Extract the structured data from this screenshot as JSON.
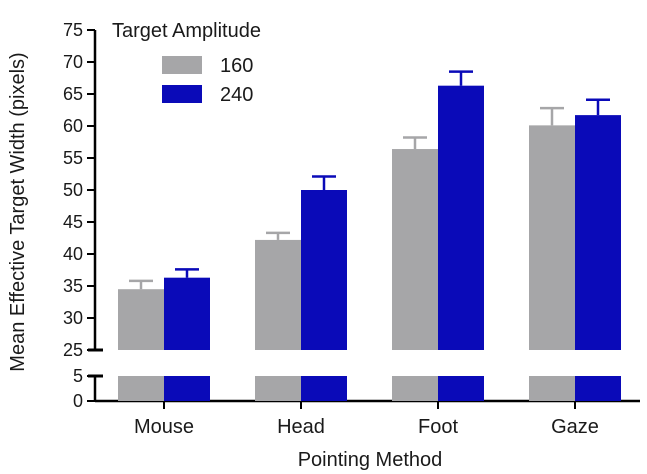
{
  "chart_data": {
    "type": "bar",
    "title": "",
    "xlabel": "Pointing Method",
    "ylabel": "Mean Effective Target Width (pixels)",
    "categories": [
      "Mouse",
      "Head",
      "Foot",
      "Gaze"
    ],
    "legend_title": "Target  Amplitude",
    "legend_position": "top-left",
    "series": [
      {
        "name": "160",
        "color": "#a6a6a8",
        "values": [
          34.5,
          42.2,
          56.4,
          60.1
        ],
        "errors": [
          1.3,
          1.1,
          1.8,
          2.7
        ]
      },
      {
        "name": "240",
        "color": "#0a0ab8",
        "values": [
          36.3,
          50.0,
          66.3,
          61.7
        ],
        "errors": [
          1.3,
          2.1,
          2.2,
          2.4
        ]
      }
    ],
    "y_axis": {
      "broken": true,
      "upper_segment": {
        "range": [
          25,
          75
        ],
        "ticks": [
          "25",
          "30",
          "35",
          "40",
          "45",
          "50",
          "55",
          "60",
          "65",
          "70",
          "75"
        ]
      },
      "lower_segment": {
        "range": [
          0,
          5
        ],
        "ticks": [
          "0",
          "5"
        ]
      }
    },
    "grid": false
  }
}
